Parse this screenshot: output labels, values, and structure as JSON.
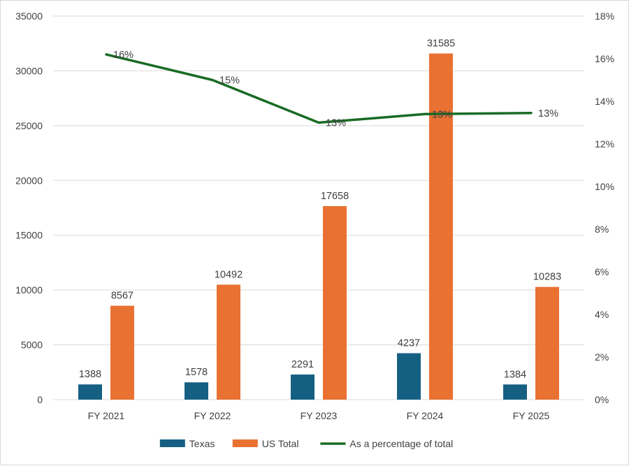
{
  "chart_data": {
    "type": "bar+line",
    "categories": [
      "FY 2021",
      "FY 2022",
      "FY 2023",
      "FY 2024",
      "FY 2025"
    ],
    "series": [
      {
        "name": "Texas",
        "type": "bar",
        "axis": "left",
        "color": "#156082",
        "values": [
          1388,
          1578,
          2291,
          4237,
          1384
        ],
        "labels": [
          "1388",
          "1578",
          "2291",
          "4237",
          "1384"
        ]
      },
      {
        "name": "US Total",
        "type": "bar",
        "axis": "left",
        "color": "#E97132",
        "values": [
          8567,
          10492,
          17658,
          31585,
          10283
        ],
        "labels": [
          "8567",
          "10492",
          "17658",
          "31585",
          "10283"
        ]
      },
      {
        "name": "As a percentage of total",
        "type": "line",
        "axis": "right",
        "color": "#196B24",
        "values": [
          0.162,
          0.15,
          0.13,
          0.134,
          0.1345
        ],
        "labels": [
          "16%",
          "15%",
          "13%",
          "13%",
          "13%"
        ]
      }
    ],
    "y_left": {
      "min": 0,
      "max": 35000,
      "step": 5000,
      "ticks": [
        "0",
        "5000",
        "10000",
        "15000",
        "20000",
        "25000",
        "30000",
        "35000"
      ]
    },
    "y_right": {
      "min": 0,
      "max": 0.18,
      "step": 0.02,
      "ticks": [
        "0%",
        "2%",
        "4%",
        "6%",
        "8%",
        "10%",
        "12%",
        "14%",
        "16%",
        "18%"
      ]
    },
    "grid": true,
    "legend": "bottom"
  }
}
